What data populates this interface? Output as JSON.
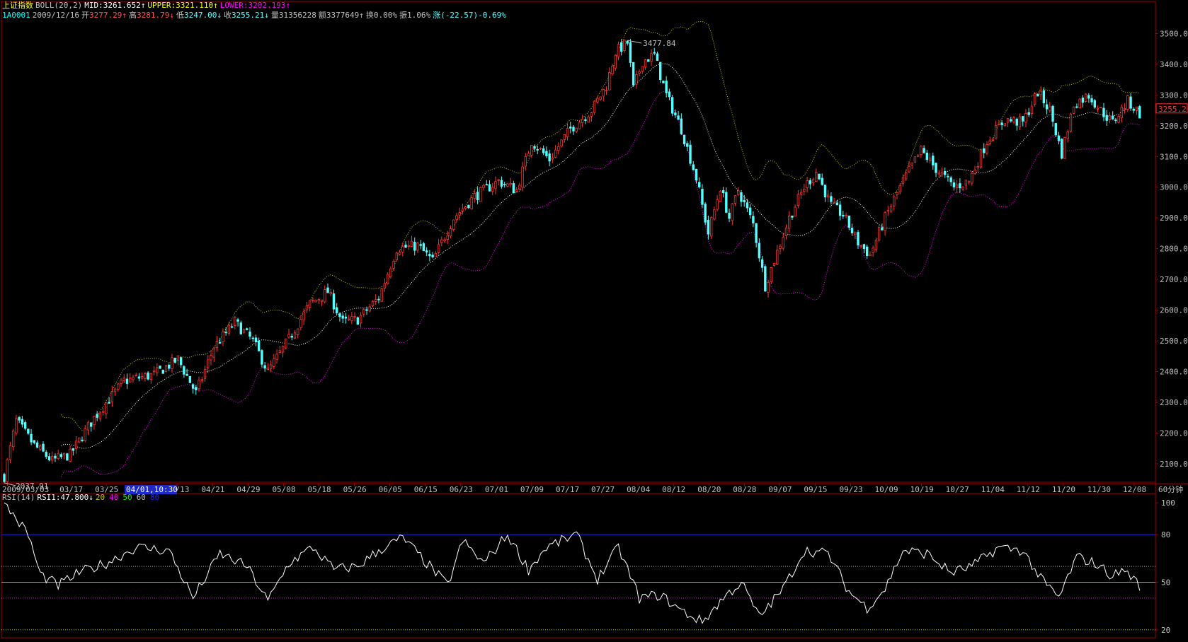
{
  "header": {
    "index_name": "上证指数",
    "indicator": "BOLL(20,2)",
    "mid_label": "MID:",
    "mid_value": "3261.652",
    "upper_label": "UPPER:",
    "upper_value": "3321.110",
    "lower_label": "LOWER:",
    "lower_value": "3202.193",
    "up_arrow": "↑",
    "down_arrow": "↓"
  },
  "quote": {
    "code": "1A0001",
    "date": "2009/12/16",
    "open_label": "开",
    "open": "3277.29",
    "high_label": "高",
    "high": "3281.79",
    "low_label": "低",
    "low": "3247.00",
    "close_label": "收",
    "close": "3255.21",
    "volume_label": "量",
    "volume": "31356228",
    "amount_label": "额",
    "amount": "3377649",
    "turnover_label": "换",
    "turnover": "0.00%",
    "amplitude_label": "振",
    "amplitude": "1.06%",
    "change_label": "涨",
    "change": "(-22.57)-0.69%"
  },
  "cursor_label": "04/01,10:30",
  "period_label": "60分钟",
  "rsi": {
    "label": "RSI(14)",
    "rsi1_label": "RSI1:",
    "rsi1_value": "47.800",
    "levels": [
      {
        "value": 20,
        "text": "20",
        "color": "#c8c800"
      },
      {
        "value": 40,
        "text": "40",
        "color": "#ff00ff"
      },
      {
        "value": 50,
        "text": "50",
        "color": "#00ff00"
      },
      {
        "value": 60,
        "text": "60",
        "color": "#c0c0c0"
      },
      {
        "value": 80,
        "text": "80",
        "color": "#2020ff"
      }
    ]
  },
  "colors": {
    "up": "#ff3232",
    "down": "#54ffff",
    "mid": "#ffffff",
    "upper": "#c8c800",
    "lower": "#ff00ff",
    "axis": "#a00000",
    "rsi": "#ffffff",
    "title": "#ffff00"
  },
  "chart_data": [
    {
      "type": "candlestick",
      "title": "上证指数",
      "subtitle": "BOLL(20,2)",
      "interval": "60分钟",
      "ylim": [
        2040,
        3540
      ],
      "y_ticks": [
        2100,
        2200,
        2300,
        2400,
        2500,
        2600,
        2700,
        2800,
        2900,
        3000,
        3100,
        3200,
        3300,
        3400,
        3500
      ],
      "y_tick_labels": [
        "2100.0",
        "2200.0",
        "2300.0",
        "2400.0",
        "2500.0",
        "2600.0",
        "2700.0",
        "2800.0",
        "2900.0",
        "3000.0",
        "3100.0",
        "3200.0",
        "3300.0",
        "3400.0",
        "3500.0"
      ],
      "x_tick_labels": [
        "2009/03/03",
        "03/17",
        "03/25",
        "04/01,10:30",
        "04/13",
        "04/21",
        "04/29",
        "05/08",
        "05/18",
        "05/26",
        "06/05",
        "06/15",
        "06/23",
        "07/01",
        "07/09",
        "07/17",
        "07/27",
        "08/04",
        "08/12",
        "08/20",
        "08/28",
        "09/07",
        "09/15",
        "09/23",
        "10/09",
        "10/19",
        "10/27",
        "11/04",
        "11/12",
        "11/20",
        "11/30",
        "12/08"
      ],
      "annotations": [
        {
          "text": "3477.84",
          "value": 3477.84,
          "kind": "high"
        },
        {
          "text": "2037.91",
          "value": 2037.91,
          "kind": "low"
        },
        {
          "text": "3255.2",
          "value": 3255.2,
          "kind": "last"
        }
      ],
      "close_path": [
        [
          0,
          2060
        ],
        [
          4,
          2240
        ],
        [
          10,
          2160
        ],
        [
          16,
          2110
        ],
        [
          22,
          2130
        ],
        [
          30,
          2250
        ],
        [
          40,
          2370
        ],
        [
          50,
          2390
        ],
        [
          58,
          2440
        ],
        [
          64,
          2330
        ],
        [
          70,
          2480
        ],
        [
          77,
          2560
        ],
        [
          83,
          2500
        ],
        [
          88,
          2400
        ],
        [
          94,
          2490
        ],
        [
          102,
          2620
        ],
        [
          108,
          2660
        ],
        [
          113,
          2560
        ],
        [
          118,
          2570
        ],
        [
          125,
          2640
        ],
        [
          131,
          2800
        ],
        [
          138,
          2810
        ],
        [
          143,
          2760
        ],
        [
          150,
          2900
        ],
        [
          157,
          2970
        ],
        [
          165,
          3020
        ],
        [
          171,
          2990
        ],
        [
          176,
          3150
        ],
        [
          182,
          3090
        ],
        [
          189,
          3190
        ],
        [
          196,
          3250
        ],
        [
          201,
          3330
        ],
        [
          204,
          3440
        ],
        [
          208,
          3470
        ],
        [
          210,
          3320
        ],
        [
          213,
          3410
        ],
        [
          217,
          3430
        ],
        [
          221,
          3300
        ],
        [
          226,
          3190
        ],
        [
          231,
          3030
        ],
        [
          235,
          2850
        ],
        [
          239,
          3000
        ],
        [
          242,
          2900
        ],
        [
          245,
          2990
        ],
        [
          250,
          2880
        ],
        [
          254,
          2680
        ],
        [
          258,
          2790
        ],
        [
          262,
          2900
        ],
        [
          267,
          3000
        ],
        [
          271,
          3050
        ],
        [
          276,
          2940
        ],
        [
          280,
          2910
        ],
        [
          285,
          2820
        ],
        [
          289,
          2780
        ],
        [
          294,
          2900
        ],
        [
          300,
          3020
        ],
        [
          306,
          3120
        ],
        [
          311,
          3060
        ],
        [
          317,
          3000
        ],
        [
          322,
          3020
        ],
        [
          328,
          3150
        ],
        [
          334,
          3220
        ],
        [
          340,
          3210
        ],
        [
          345,
          3310
        ],
        [
          349,
          3250
        ],
        [
          353,
          3110
        ],
        [
          357,
          3270
        ],
        [
          362,
          3300
        ],
        [
          366,
          3250
        ],
        [
          370,
          3210
        ],
        [
          375,
          3280
        ],
        [
          379,
          3240
        ]
      ]
    },
    {
      "type": "line",
      "title": "RSI(14)",
      "series": [
        {
          "name": "RSI1",
          "last": 47.8
        }
      ],
      "ylim": [
        15,
        105
      ],
      "y_ticks": [
        20,
        50,
        80,
        100
      ],
      "y_tick_labels": [
        "20",
        "50",
        "80",
        "100"
      ],
      "rsi_path": [
        [
          0,
          100
        ],
        [
          8,
          80
        ],
        [
          12,
          55
        ],
        [
          18,
          48
        ],
        [
          25,
          56
        ],
        [
          34,
          62
        ],
        [
          44,
          72
        ],
        [
          55,
          70
        ],
        [
          63,
          40
        ],
        [
          72,
          68
        ],
        [
          81,
          60
        ],
        [
          88,
          38
        ],
        [
          95,
          62
        ],
        [
          103,
          72
        ],
        [
          110,
          58
        ],
        [
          118,
          60
        ],
        [
          125,
          70
        ],
        [
          133,
          78
        ],
        [
          141,
          62
        ],
        [
          148,
          48
        ],
        [
          153,
          76
        ],
        [
          160,
          62
        ],
        [
          168,
          80
        ],
        [
          175,
          58
        ],
        [
          181,
          72
        ],
        [
          191,
          80
        ],
        [
          198,
          52
        ],
        [
          205,
          72
        ],
        [
          212,
          40
        ],
        [
          219,
          42
        ],
        [
          226,
          32
        ],
        [
          233,
          25
        ],
        [
          240,
          40
        ],
        [
          246,
          50
        ],
        [
          252,
          28
        ],
        [
          260,
          46
        ],
        [
          267,
          70
        ],
        [
          275,
          68
        ],
        [
          282,
          44
        ],
        [
          288,
          34
        ],
        [
          294,
          46
        ],
        [
          300,
          70
        ],
        [
          308,
          68
        ],
        [
          316,
          56
        ],
        [
          323,
          60
        ],
        [
          332,
          72
        ],
        [
          340,
          70
        ],
        [
          346,
          52
        ],
        [
          352,
          40
        ],
        [
          358,
          66
        ],
        [
          364,
          62
        ],
        [
          370,
          54
        ],
        [
          374,
          58
        ],
        [
          379,
          48
        ]
      ]
    }
  ]
}
